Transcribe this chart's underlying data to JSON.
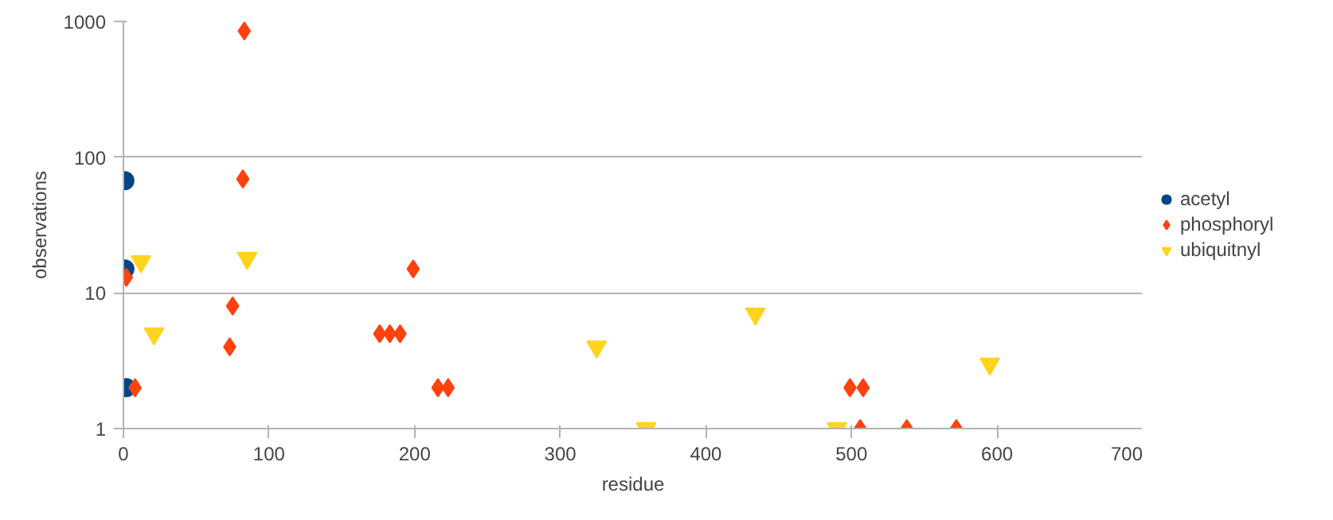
{
  "chart_data": {
    "type": "scatter",
    "xlabel": "residue",
    "ylabel": "observations",
    "log": "y",
    "grid": "y",
    "legend": "right",
    "xlim": [
      0,
      700
    ],
    "xticks": [
      0,
      100,
      200,
      300,
      400,
      500,
      600,
      700
    ],
    "ylim": [
      1,
      1000
    ],
    "yticks": [
      1,
      10,
      100,
      1000
    ],
    "series": [
      {
        "name": "acetyl",
        "color": "#004586",
        "marker": "circle",
        "x": [
          1,
          1,
          2
        ],
        "values": [
          67,
          15,
          2
        ]
      },
      {
        "name": "phosphoryl",
        "color": "#ff420e",
        "marker": "diamond",
        "x": [
          83,
          82,
          2,
          8,
          75,
          73,
          199,
          176,
          183,
          190,
          216,
          223,
          499,
          508,
          506,
          538,
          572
        ],
        "values": [
          850,
          69,
          13,
          2,
          8,
          4,
          15,
          5,
          5,
          5,
          2,
          2,
          2,
          2,
          1,
          1,
          1
        ]
      },
      {
        "name": "ubiquitnyl",
        "color": "#ffd320",
        "marker": "triangle",
        "x": [
          12,
          85,
          21,
          325,
          359,
          434,
          490,
          595
        ],
        "values": [
          17,
          18,
          5,
          4,
          1,
          7,
          1,
          3
        ]
      }
    ]
  }
}
